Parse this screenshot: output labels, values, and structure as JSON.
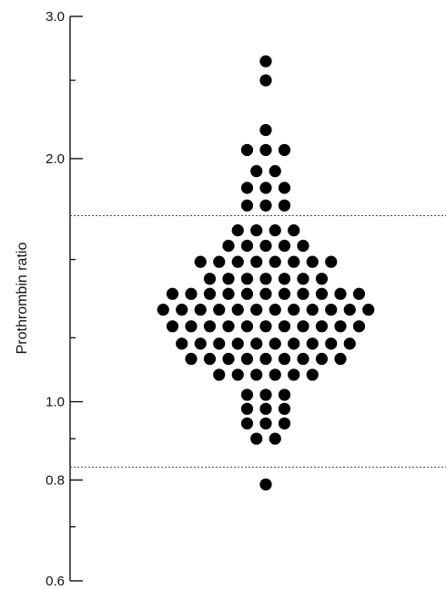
{
  "chart_data": {
    "type": "scatter",
    "subtype": "dot-strip (beeswarm)",
    "ylabel": "Prothrombin ratio",
    "xlabel": "",
    "y_scale": "log",
    "ylim": [
      0.6,
      3.0
    ],
    "y_major_ticks": [
      {
        "value": 3.0,
        "label": "3.0"
      },
      {
        "value": 2.0,
        "label": "2.0"
      },
      {
        "value": 1.0,
        "label": "1.0"
      },
      {
        "value": 0.8,
        "label": "0.8"
      },
      {
        "value": 0.6,
        "label": "0.6"
      }
    ],
    "y_minor_ticks": [
      2.5,
      1.5,
      1.2,
      0.9,
      0.7
    ],
    "reference_lines": [
      1.7,
      0.83
    ],
    "rows": [
      {
        "y": 2.64,
        "count": 1
      },
      {
        "y": 2.5,
        "count": 1
      },
      {
        "y": 2.17,
        "count": 1
      },
      {
        "y": 2.05,
        "count": 3
      },
      {
        "y": 1.93,
        "count": 2
      },
      {
        "y": 1.84,
        "count": 3
      },
      {
        "y": 1.75,
        "count": 3
      },
      {
        "y": 1.63,
        "count": 4
      },
      {
        "y": 1.56,
        "count": 5
      },
      {
        "y": 1.49,
        "count": 8
      },
      {
        "y": 1.42,
        "count": 7
      },
      {
        "y": 1.36,
        "count": 11
      },
      {
        "y": 1.3,
        "count": 12
      },
      {
        "y": 1.24,
        "count": 11
      },
      {
        "y": 1.18,
        "count": 10
      },
      {
        "y": 1.13,
        "count": 9
      },
      {
        "y": 1.08,
        "count": 6
      },
      {
        "y": 1.02,
        "count": 3
      },
      {
        "y": 0.98,
        "count": 3
      },
      {
        "y": 0.94,
        "count": 3
      },
      {
        "y": 0.9,
        "count": 2
      },
      {
        "y": 0.79,
        "count": 1
      }
    ],
    "dot_color": "#000000",
    "reference_line_color": "#444444"
  }
}
